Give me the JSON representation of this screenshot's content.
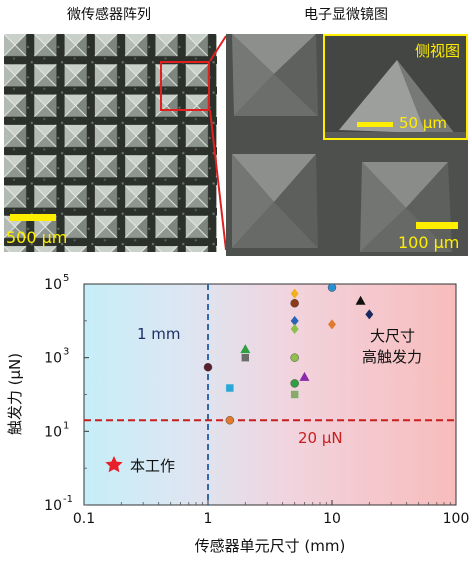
{
  "panels": {
    "array_title": "微传感器阵列",
    "sem_title": "电子显微镜图",
    "side_view_label": "侧视图",
    "scale_array": "500 μm",
    "scale_sem": "100 μm",
    "scale_inset": "50 μm"
  },
  "colors": {
    "scale_yellow": "#ffee00",
    "zoom_red": "#e02020",
    "left_bg": "#bfeaf6",
    "right_bg": "#f7bcbc",
    "dash_blue": "#2f6aa8",
    "dash_red": "#c81e1e",
    "star_red": "#e8202a"
  },
  "chart_data": {
    "type": "scatter",
    "xscale": "log",
    "yscale": "log",
    "xlim": [
      0.1,
      100
    ],
    "ylim": [
      0.1,
      100000
    ],
    "xlabel": "传感器单元尺寸 (mm)",
    "ylabel": "触发力 (μN)",
    "xticks": [
      "0.1",
      "1",
      "10",
      "100"
    ],
    "yticks": [
      {
        "base": "10",
        "exp": "-1",
        "value": 0.1
      },
      {
        "base": "10",
        "exp": "1",
        "value": 10
      },
      {
        "base": "10",
        "exp": "3",
        "value": 1000
      },
      {
        "base": "10",
        "exp": "5",
        "value": 100000
      }
    ],
    "vline": {
      "x": 1,
      "label": "1 mm"
    },
    "hline": {
      "y": 20,
      "label": "20 μN"
    },
    "region_label_right": [
      "大尺寸",
      "高触发力"
    ],
    "legend": {
      "label": "本工作",
      "marker": "star"
    },
    "points": [
      {
        "x": 1.0,
        "y": 550,
        "shape": "circle",
        "color": "#5a1f2c"
      },
      {
        "x": 1.5,
        "y": 20,
        "shape": "circle",
        "color": "#e07a30"
      },
      {
        "x": 1.5,
        "y": 150,
        "shape": "square",
        "color": "#28a7d8"
      },
      {
        "x": 2.0,
        "y": 1700,
        "shape": "triangle",
        "color": "#2ea042"
      },
      {
        "x": 2.0,
        "y": 1000,
        "shape": "square",
        "color": "#6b6b6b"
      },
      {
        "x": 5.0,
        "y": 55000,
        "shape": "diamond",
        "color": "#f0b020"
      },
      {
        "x": 5.0,
        "y": 30000,
        "shape": "circle",
        "color": "#8b3a1a"
      },
      {
        "x": 5.0,
        "y": 10000,
        "shape": "diamond",
        "color": "#2a64b8"
      },
      {
        "x": 5.0,
        "y": 6000,
        "shape": "diamond",
        "color": "#8cc04a"
      },
      {
        "x": 5.0,
        "y": 1000,
        "shape": "circle",
        "color": "#8cc04a"
      },
      {
        "x": 5.0,
        "y": 200,
        "shape": "circle",
        "color": "#2ea042"
      },
      {
        "x": 5.0,
        "y": 100,
        "shape": "square",
        "color": "#8aa86a"
      },
      {
        "x": 6.0,
        "y": 300,
        "shape": "triangle",
        "color": "#8a2aa8"
      },
      {
        "x": 10.0,
        "y": 80000,
        "shape": "circle",
        "color": "#2a8fd0"
      },
      {
        "x": 10.0,
        "y": 8000,
        "shape": "diamond",
        "color": "#e07a30"
      },
      {
        "x": 17.0,
        "y": 35000,
        "shape": "triangle",
        "color": "#111111"
      },
      {
        "x": 20.0,
        "y": 15000,
        "shape": "diamond",
        "color": "#1a2a60"
      }
    ]
  }
}
